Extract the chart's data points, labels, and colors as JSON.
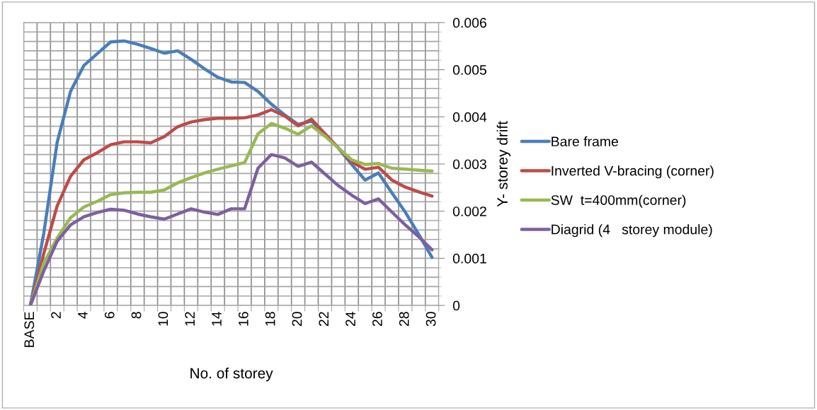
{
  "chart_data": {
    "type": "line",
    "xlabel": "No. of storey",
    "ylabel": "Y- storey drift",
    "categories": [
      "BASE",
      null,
      "2",
      null,
      "4",
      null,
      "6",
      null,
      "8",
      null,
      "10",
      null,
      "12",
      null,
      "14",
      null,
      "16",
      null,
      "18",
      null,
      "20",
      null,
      "22",
      null,
      "24",
      null,
      "26",
      null,
      "28",
      null,
      "30"
    ],
    "series": [
      {
        "name": "Bare frame",
        "color": "#4a7ebb",
        "values": [
          0,
          0.00153,
          0.00346,
          0.00454,
          0.00509,
          0.00534,
          0.00559,
          0.00561,
          0.00554,
          0.00545,
          0.00535,
          0.0054,
          0.00522,
          0.00502,
          0.00484,
          0.00474,
          0.00473,
          0.00454,
          0.00427,
          0.00404,
          0.00384,
          0.00391,
          0.00364,
          0.00334,
          0.00299,
          0.00266,
          0.00281,
          0.00239,
          0.00198,
          0.00151,
          0.00102
        ]
      },
      {
        "name": "Inverted V-bracing (corner)",
        "color": "#be4b48",
        "values": [
          0,
          0.0011,
          0.00211,
          0.00274,
          0.00309,
          0.00324,
          0.00341,
          0.00347,
          0.00347,
          0.00345,
          0.00358,
          0.00379,
          0.00389,
          0.00394,
          0.00397,
          0.00397,
          0.00398,
          0.00404,
          0.00415,
          0.00402,
          0.00381,
          0.00395,
          0.00364,
          0.00334,
          0.00304,
          0.00289,
          0.00293,
          0.00266,
          0.00251,
          0.00241,
          0.00232
        ]
      },
      {
        "name": "SW  t=400mm(corner)",
        "color": "#98b954",
        "values": [
          0,
          0.0009,
          0.00143,
          0.00186,
          0.00209,
          0.00221,
          0.00235,
          0.00239,
          0.0024,
          0.0024,
          0.00245,
          0.0026,
          0.00271,
          0.00281,
          0.00289,
          0.00296,
          0.00303,
          0.00364,
          0.00386,
          0.00376,
          0.00363,
          0.00381,
          0.00359,
          0.00334,
          0.00309,
          0.00299,
          0.00301,
          0.00291,
          0.00289,
          0.00287,
          0.00285
        ]
      },
      {
        "name": "Diagrid (4   storey module)",
        "color": "#7d60a0",
        "values": [
          0,
          0.00073,
          0.00136,
          0.00171,
          0.00188,
          0.00197,
          0.00204,
          0.00202,
          0.00194,
          0.00188,
          0.00183,
          0.00194,
          0.00205,
          0.00198,
          0.00193,
          0.00205,
          0.00205,
          0.00291,
          0.0032,
          0.00313,
          0.00295,
          0.00304,
          0.00279,
          0.00254,
          0.00234,
          0.00216,
          0.00226,
          0.00198,
          0.00171,
          0.00146,
          0.00118
        ]
      }
    ],
    "ylim": [
      0,
      0.006
    ],
    "yticks": [
      0,
      0.001,
      0.002,
      0.003,
      0.004,
      0.005,
      0.006
    ],
    "grid": true,
    "legend": "right",
    "marker": "none",
    "line_style": "solid"
  }
}
